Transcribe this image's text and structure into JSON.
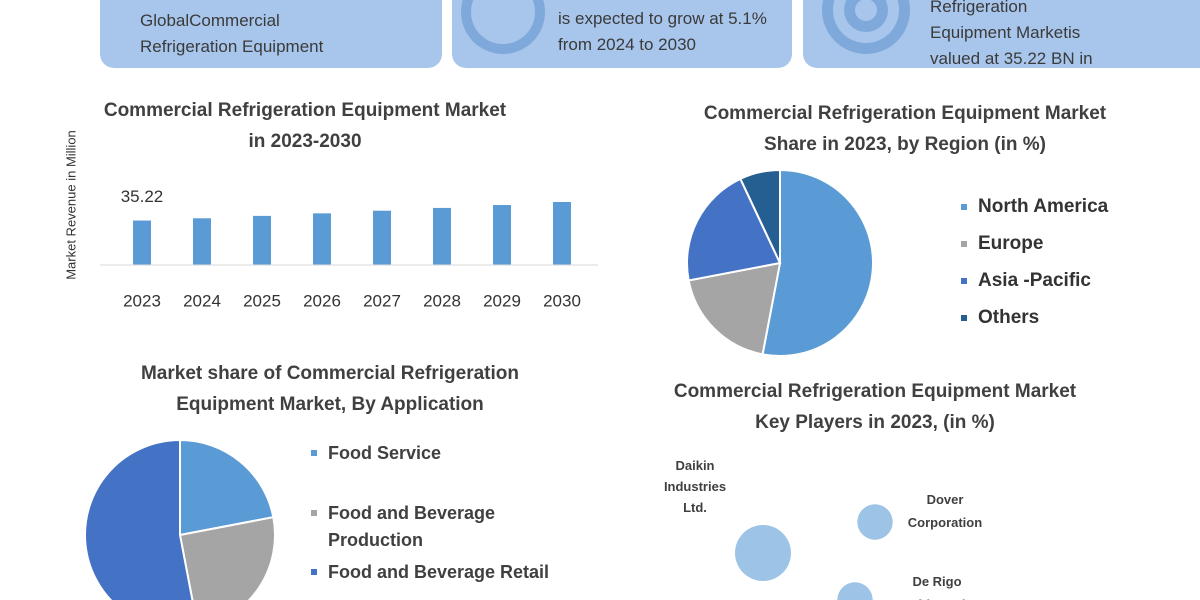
{
  "header_cards": [
    {
      "lines": [
        "GlobalCommercial",
        "Refrigeration Equipment"
      ]
    },
    {
      "lines": [
        "is expected to grow at 5.1%",
        "from 2024 to 2030"
      ]
    },
    {
      "lines": [
        "Refrigeration",
        "Equipment Marketis",
        "valued at 35.22 BN in"
      ]
    }
  ],
  "chart_data": [
    {
      "type": "bar",
      "title": "Commercial Refrigeration Equipment Market in 2023-2030",
      "y_label": "Market Revenue in Million",
      "categories": [
        "2023",
        "2024",
        "2025",
        "2026",
        "2027",
        "2028",
        "2029",
        "2030"
      ],
      "values": [
        35.22,
        37.0,
        38.9,
        40.9,
        43.0,
        45.2,
        47.5,
        49.9
      ],
      "value_labels": [
        "35.22",
        null,
        null,
        null,
        null,
        null,
        null,
        null
      ],
      "color": "#5b9bd5"
    },
    {
      "type": "pie",
      "title": "Commercial Refrigeration Equipment Market Share in 2023,  by Region (in %)",
      "categories": [
        "North America",
        "Europe",
        "Asia -Pacific",
        "Others"
      ],
      "values": [
        53,
        19,
        21,
        7
      ],
      "colors": [
        "#5b9bd5",
        "#a5a5a5",
        "#4472c4",
        "#255e91"
      ]
    },
    {
      "type": "pie",
      "title": "Market share of Commercial Refrigeration Equipment Market, By Application",
      "categories": [
        "Food Service",
        "Food and Beverage Production",
        "Food and Beverage Retail"
      ],
      "values": [
        22,
        25,
        53
      ],
      "colors": [
        "#5b9bd5",
        "#a5a5a5",
        "#4472c4"
      ]
    },
    {
      "type": "bubble",
      "title": "Commercial Refrigeration Equipment Market Key Players in 2023,  (in %)",
      "categories": [
        "Daikin Industries Ltd.",
        "Dover Corporation",
        "De Rigo Refrigeratio"
      ],
      "values": [
        10,
        4,
        4
      ],
      "color": "#9dc3e6"
    }
  ]
}
